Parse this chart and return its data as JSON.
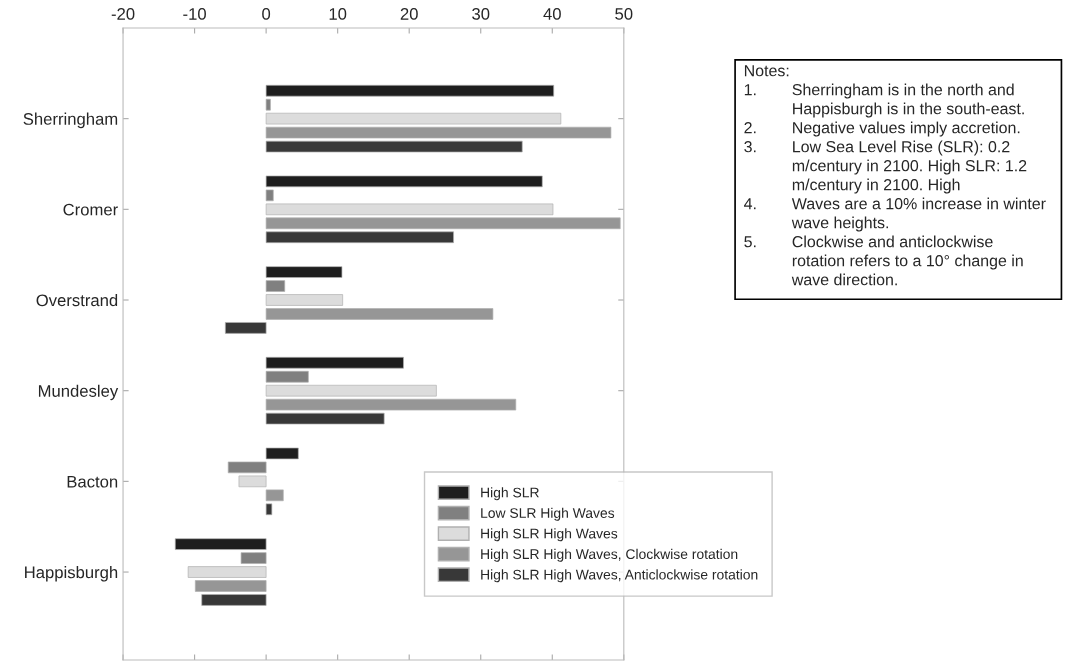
{
  "chart_data": {
    "type": "bar",
    "orientation": "horizontal",
    "categories": [
      "Sherringham",
      "Cromer",
      "Overstrand",
      "Mundesley",
      "Bacton",
      "Happisburgh"
    ],
    "series": [
      {
        "name": "High SLR",
        "color": "#1e1e1e",
        "values": [
          40.2,
          38.6,
          10.6,
          19.2,
          4.5,
          -12.7
        ]
      },
      {
        "name": "Low SLR High Waves",
        "color": "#808080",
        "values": [
          0.6,
          1.0,
          2.6,
          5.9,
          -5.3,
          -3.5
        ]
      },
      {
        "name": "High SLR High Waves",
        "color": "#dcdcdc",
        "values": [
          41.2,
          40.1,
          10.7,
          23.8,
          -3.8,
          -10.9
        ]
      },
      {
        "name": "High SLR High Waves, Clockwise rotation",
        "color": "#969696",
        "values": [
          48.2,
          49.5,
          31.7,
          34.9,
          2.4,
          -9.9
        ]
      },
      {
        "name": "High SLR High Waves, Anticlockwise rotation",
        "color": "#383838",
        "values": [
          35.8,
          26.2,
          -5.7,
          16.5,
          0.8,
          -9.0
        ]
      }
    ],
    "xlim": [
      -20,
      50
    ],
    "xticks": [
      -20,
      -10,
      0,
      10,
      20,
      30,
      40,
      50
    ],
    "grid": false,
    "legend": "bottom right",
    "annotations": [
      "Notes:",
      "1. Sherringham is in the north and Happisburgh is in the south-east.",
      "2. Negative values imply accretion.",
      "3. Low Sea Level Rise (SLR): 0.2 m/century in 2100. High SLR: 1.2 m/century in 2100. High",
      "4. Waves are a 10% increase in winter wave heights.",
      "5. Clockwise and anticlockwise rotation refers to a 10° change in wave direction."
    ]
  }
}
